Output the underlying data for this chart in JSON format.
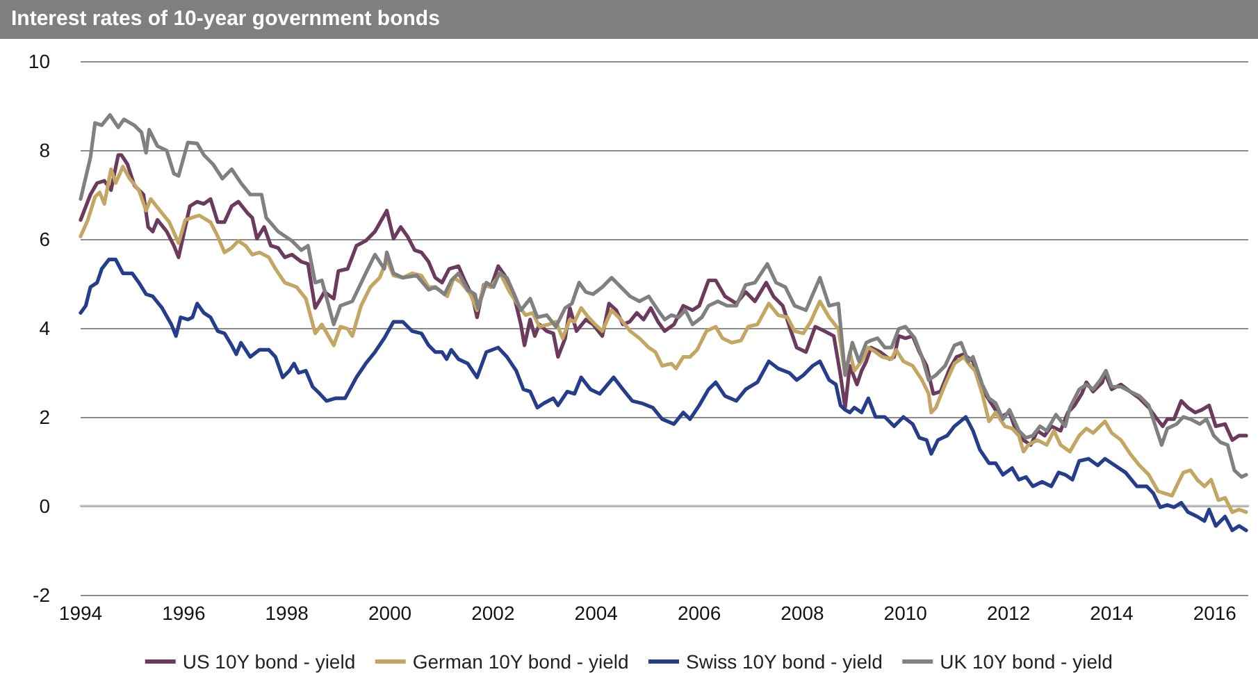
{
  "chart_data": {
    "type": "line",
    "title": "Interest rates of 10-year government bonds",
    "xlim": [
      1994,
      2016.65
    ],
    "xticks": [
      1994,
      1996,
      1998,
      2000,
      2002,
      2004,
      2006,
      2008,
      2010,
      2012,
      2014,
      2016
    ],
    "ylim": [
      -2,
      10
    ],
    "yticks": [
      -2,
      0,
      2,
      4,
      6,
      8,
      10
    ],
    "grid": "y",
    "legend": "bottom",
    "marker": "none",
    "line_style": "solid",
    "series": [
      {
        "name": "US 10Y bond - yield",
        "color": "#6b3a5c",
        "x": [
          1994.0,
          1994.19,
          1994.32,
          1994.46,
          1994.59,
          1994.73,
          1994.79,
          1994.91,
          1995.04,
          1995.22,
          1995.31,
          1995.4,
          1995.49,
          1995.67,
          1995.81,
          1995.9,
          1995.99,
          1996.12,
          1996.26,
          1996.39,
          1996.52,
          1996.66,
          1996.79,
          1996.93,
          1997.06,
          1997.24,
          1997.33,
          1997.42,
          1997.56,
          1997.69,
          1997.83,
          1997.96,
          1998.1,
          1998.28,
          1998.41,
          1998.55,
          1998.73,
          1998.91,
          1999.0,
          1999.18,
          1999.35,
          1999.53,
          1999.71,
          1999.94,
          2000.07,
          2000.21,
          2000.34,
          2000.48,
          2000.61,
          2000.75,
          2000.88,
          2001.01,
          2001.15,
          2001.33,
          2001.47,
          2001.6,
          2001.69,
          2001.82,
          2001.96,
          2002.1,
          2002.23,
          2002.41,
          2002.54,
          2002.61,
          2002.72,
          2002.81,
          2002.9,
          2003.04,
          2003.17,
          2003.26,
          2003.4,
          2003.49,
          2003.62,
          2003.8,
          2003.94,
          2004.12,
          2004.25,
          2004.39,
          2004.52,
          2004.65,
          2004.79,
          2004.92,
          2005.06,
          2005.2,
          2005.33,
          2005.51,
          2005.69,
          2005.87,
          2006.0,
          2006.18,
          2006.32,
          2006.5,
          2006.72,
          2006.9,
          2007.08,
          2007.3,
          2007.44,
          2007.62,
          2007.75,
          2007.89,
          2008.07,
          2008.25,
          2008.43,
          2008.61,
          2008.74,
          2008.83,
          2008.92,
          2009.06,
          2009.15,
          2009.24,
          2009.33,
          2009.51,
          2009.69,
          2009.78,
          2009.87,
          2010.0,
          2010.14,
          2010.27,
          2010.41,
          2010.54,
          2010.68,
          2010.86,
          2010.99,
          2011.13,
          2011.31,
          2011.49,
          2011.66,
          2011.84,
          2012.02,
          2012.16,
          2012.29,
          2012.43,
          2012.56,
          2012.7,
          2012.83,
          2013.01,
          2013.15,
          2013.28,
          2013.42,
          2013.51,
          2013.64,
          2013.82,
          2013.87,
          2014.0,
          2014.18,
          2014.36,
          2014.54,
          2014.72,
          2014.85,
          2014.99,
          2015.08,
          2015.21,
          2015.35,
          2015.48,
          2015.62,
          2015.75,
          2015.89,
          2016.02,
          2016.2,
          2016.34,
          2016.47,
          2016.61
        ],
        "values": [
          6.43,
          7.0,
          7.26,
          7.31,
          7.1,
          7.89,
          7.89,
          7.68,
          7.21,
          7.0,
          6.27,
          6.17,
          6.43,
          6.17,
          5.85,
          5.59,
          6.06,
          6.74,
          6.84,
          6.79,
          6.9,
          6.38,
          6.38,
          6.74,
          6.84,
          6.58,
          6.48,
          6.01,
          6.27,
          5.85,
          5.8,
          5.59,
          5.65,
          5.49,
          5.44,
          4.45,
          4.81,
          4.66,
          5.28,
          5.33,
          5.85,
          5.96,
          6.17,
          6.64,
          6.01,
          6.27,
          6.06,
          5.75,
          5.7,
          5.49,
          5.13,
          5.02,
          5.33,
          5.39,
          5.02,
          4.71,
          4.24,
          4.97,
          4.92,
          5.39,
          5.18,
          4.71,
          4.08,
          3.61,
          4.19,
          3.82,
          4.08,
          3.93,
          3.88,
          3.35,
          3.77,
          4.45,
          3.93,
          4.19,
          4.08,
          3.82,
          4.55,
          4.4,
          4.08,
          4.14,
          4.34,
          4.19,
          4.45,
          4.14,
          3.93,
          4.08,
          4.5,
          4.4,
          4.5,
          5.07,
          5.07,
          4.71,
          4.55,
          4.81,
          4.6,
          5.02,
          4.71,
          4.5,
          4.03,
          3.56,
          3.46,
          4.03,
          3.93,
          3.82,
          2.94,
          2.21,
          3.15,
          2.73,
          3.04,
          3.25,
          3.56,
          3.46,
          3.3,
          3.35,
          3.82,
          3.77,
          3.82,
          3.46,
          3.15,
          2.52,
          2.57,
          3.09,
          3.35,
          3.41,
          3.25,
          2.62,
          2.31,
          2.0,
          2.1,
          1.64,
          1.48,
          1.37,
          1.69,
          1.58,
          1.79,
          1.69,
          2.1,
          2.26,
          2.52,
          2.78,
          2.57,
          2.78,
          2.99,
          2.62,
          2.73,
          2.57,
          2.42,
          2.21,
          2.0,
          1.79,
          1.95,
          1.95,
          2.36,
          2.21,
          2.1,
          2.16,
          2.26,
          1.79,
          1.84,
          1.48,
          1.58,
          1.58
        ]
      },
      {
        "name": "German 10Y bond - yield",
        "color": "#c2a661",
        "x": [
          1994.0,
          1994.14,
          1994.28,
          1994.37,
          1994.46,
          1994.59,
          1994.68,
          1994.82,
          1994.95,
          1995.13,
          1995.27,
          1995.36,
          1995.54,
          1995.72,
          1995.9,
          1996.03,
          1996.21,
          1996.3,
          1996.52,
          1996.66,
          1996.79,
          1996.93,
          1997.06,
          1997.2,
          1997.33,
          1997.47,
          1997.65,
          1997.78,
          1997.96,
          1998.19,
          1998.37,
          1998.55,
          1998.68,
          1998.91,
          1999.04,
          1999.18,
          1999.27,
          1999.44,
          1999.62,
          1999.8,
          1999.94,
          2000.07,
          2000.25,
          2000.43,
          2000.61,
          2000.75,
          2000.88,
          2001.11,
          2001.24,
          2001.38,
          2001.56,
          2001.69,
          2001.83,
          2001.96,
          2002.14,
          2002.32,
          2002.5,
          2002.63,
          2002.77,
          2002.9,
          2003.08,
          2003.22,
          2003.35,
          2003.49,
          2003.58,
          2003.71,
          2003.85,
          2003.98,
          2004.12,
          2004.3,
          2004.48,
          2004.66,
          2004.84,
          2005.02,
          2005.15,
          2005.28,
          2005.46,
          2005.55,
          2005.69,
          2005.82,
          2005.96,
          2006.14,
          2006.32,
          2006.45,
          2006.63,
          2006.81,
          2006.95,
          2007.13,
          2007.35,
          2007.53,
          2007.71,
          2007.85,
          2008.02,
          2008.16,
          2008.34,
          2008.52,
          2008.7,
          2008.83,
          2008.92,
          2009.01,
          2009.15,
          2009.28,
          2009.42,
          2009.55,
          2009.73,
          2009.82,
          2009.96,
          2010.14,
          2010.32,
          2010.45,
          2010.5,
          2010.59,
          2010.77,
          2010.95,
          2011.13,
          2011.26,
          2011.35,
          2011.49,
          2011.62,
          2011.75,
          2011.93,
          2012.07,
          2012.2,
          2012.29,
          2012.38,
          2012.56,
          2012.74,
          2012.88,
          2013.01,
          2013.19,
          2013.37,
          2013.51,
          2013.64,
          2013.87,
          2014.0,
          2014.18,
          2014.36,
          2014.54,
          2014.72,
          2014.9,
          2015.03,
          2015.17,
          2015.3,
          2015.39,
          2015.53,
          2015.66,
          2015.8,
          2015.93,
          2016.07,
          2016.2,
          2016.34,
          2016.47,
          2016.61
        ],
        "values": [
          6.06,
          6.43,
          6.95,
          7.05,
          6.79,
          7.57,
          7.26,
          7.63,
          7.36,
          7.1,
          6.64,
          6.9,
          6.64,
          6.38,
          5.91,
          6.43,
          6.5,
          6.53,
          6.38,
          6.06,
          5.7,
          5.8,
          5.96,
          5.85,
          5.65,
          5.7,
          5.59,
          5.33,
          5.02,
          4.92,
          4.66,
          3.88,
          4.08,
          3.61,
          4.03,
          3.98,
          3.82,
          4.5,
          4.92,
          5.13,
          5.54,
          5.18,
          5.13,
          5.23,
          5.18,
          4.92,
          4.92,
          4.71,
          5.13,
          5.02,
          4.76,
          4.4,
          4.97,
          4.92,
          5.23,
          4.81,
          4.5,
          4.29,
          4.34,
          4.03,
          4.08,
          4.14,
          3.77,
          4.19,
          4.14,
          4.45,
          4.24,
          4.08,
          3.93,
          4.4,
          4.19,
          3.93,
          3.77,
          3.56,
          3.46,
          3.15,
          3.2,
          3.09,
          3.35,
          3.35,
          3.51,
          3.93,
          4.03,
          3.77,
          3.67,
          3.72,
          4.03,
          4.08,
          4.55,
          4.29,
          4.24,
          3.93,
          3.88,
          4.14,
          4.6,
          4.24,
          3.98,
          2.94,
          3.46,
          3.04,
          3.25,
          3.56,
          3.46,
          3.35,
          3.3,
          3.51,
          3.25,
          3.15,
          2.83,
          2.52,
          2.1,
          2.21,
          2.73,
          3.2,
          3.35,
          3.15,
          3.04,
          2.52,
          1.9,
          2.1,
          1.79,
          1.74,
          1.58,
          1.22,
          1.37,
          1.48,
          1.37,
          1.69,
          1.37,
          1.22,
          1.58,
          1.74,
          1.64,
          1.9,
          1.64,
          1.48,
          1.17,
          0.91,
          0.7,
          0.33,
          0.28,
          0.23,
          0.54,
          0.75,
          0.8,
          0.59,
          0.44,
          0.59,
          0.13,
          0.18,
          -0.14,
          -0.08,
          -0.14
        ]
      },
      {
        "name": "Swiss 10Y bond - yield",
        "color": "#263d8c",
        "x": [
          1994.0,
          1994.1,
          1994.19,
          1994.32,
          1994.41,
          1994.55,
          1994.68,
          1994.82,
          1995.0,
          1995.13,
          1995.27,
          1995.4,
          1995.58,
          1995.76,
          1995.85,
          1995.94,
          1996.08,
          1996.17,
          1996.26,
          1996.39,
          1996.52,
          1996.66,
          1996.79,
          1996.93,
          1997.02,
          1997.11,
          1997.29,
          1997.47,
          1997.65,
          1997.78,
          1997.92,
          1998.05,
          1998.14,
          1998.23,
          1998.37,
          1998.5,
          1998.64,
          1998.77,
          1998.95,
          1999.13,
          1999.35,
          1999.53,
          1999.71,
          1999.89,
          2000.07,
          2000.25,
          2000.43,
          2000.61,
          2000.75,
          2000.88,
          2001.01,
          2001.1,
          2001.19,
          2001.33,
          2001.51,
          2001.69,
          2001.87,
          2002.1,
          2002.27,
          2002.45,
          2002.59,
          2002.72,
          2002.86,
          2002.99,
          2003.17,
          2003.26,
          2003.44,
          2003.58,
          2003.71,
          2003.89,
          2004.07,
          2004.34,
          2004.52,
          2004.7,
          2004.88,
          2005.1,
          2005.28,
          2005.51,
          2005.69,
          2005.82,
          2006.0,
          2006.18,
          2006.32,
          2006.5,
          2006.72,
          2006.9,
          2007.13,
          2007.35,
          2007.53,
          2007.75,
          2007.89,
          2008.02,
          2008.2,
          2008.34,
          2008.52,
          2008.65,
          2008.74,
          2008.83,
          2008.92,
          2009.01,
          2009.15,
          2009.28,
          2009.42,
          2009.6,
          2009.78,
          2009.96,
          2010.14,
          2010.27,
          2010.41,
          2010.5,
          2010.63,
          2010.81,
          2010.95,
          2011.17,
          2011.31,
          2011.44,
          2011.62,
          2011.75,
          2011.89,
          2012.07,
          2012.2,
          2012.34,
          2012.47,
          2012.65,
          2012.83,
          2012.97,
          2013.1,
          2013.24,
          2013.37,
          2013.55,
          2013.73,
          2013.87,
          2014.0,
          2014.27,
          2014.49,
          2014.68,
          2014.81,
          2014.94,
          2015.08,
          2015.21,
          2015.35,
          2015.48,
          2015.66,
          2015.8,
          2015.89,
          2016.02,
          2016.2,
          2016.34,
          2016.47,
          2016.61
        ],
        "values": [
          4.34,
          4.5,
          4.92,
          5.02,
          5.33,
          5.54,
          5.54,
          5.23,
          5.23,
          5.02,
          4.76,
          4.71,
          4.45,
          4.08,
          3.82,
          4.24,
          4.19,
          4.24,
          4.55,
          4.34,
          4.24,
          3.93,
          3.88,
          3.61,
          3.41,
          3.67,
          3.35,
          3.51,
          3.51,
          3.35,
          2.89,
          3.04,
          3.2,
          2.99,
          3.04,
          2.68,
          2.52,
          2.36,
          2.42,
          2.42,
          2.89,
          3.2,
          3.46,
          3.77,
          4.14,
          4.14,
          3.93,
          3.88,
          3.61,
          3.46,
          3.46,
          3.3,
          3.51,
          3.3,
          3.2,
          2.89,
          3.46,
          3.56,
          3.35,
          3.04,
          2.62,
          2.57,
          2.21,
          2.31,
          2.42,
          2.26,
          2.57,
          2.52,
          2.89,
          2.62,
          2.52,
          2.89,
          2.62,
          2.36,
          2.31,
          2.21,
          1.95,
          1.84,
          2.1,
          1.95,
          2.26,
          2.62,
          2.78,
          2.47,
          2.36,
          2.62,
          2.78,
          3.25,
          3.09,
          2.99,
          2.83,
          2.94,
          3.15,
          3.25,
          2.83,
          2.73,
          2.26,
          2.16,
          2.1,
          2.21,
          2.1,
          2.42,
          2.0,
          2.0,
          1.79,
          2.0,
          1.84,
          1.53,
          1.48,
          1.17,
          1.48,
          1.58,
          1.79,
          2.0,
          1.69,
          1.27,
          0.96,
          0.96,
          0.7,
          0.85,
          0.59,
          0.65,
          0.44,
          0.54,
          0.44,
          0.75,
          0.7,
          0.59,
          1.01,
          1.06,
          0.91,
          1.06,
          0.96,
          0.75,
          0.44,
          0.44,
          0.28,
          -0.03,
          0.02,
          -0.03,
          0.07,
          -0.14,
          -0.24,
          -0.34,
          -0.08,
          -0.45,
          -0.24,
          -0.55,
          -0.45,
          -0.55
        ]
      },
      {
        "name": "UK 10Y bond - yield",
        "color": "#808080",
        "x": [
          1994.0,
          1994.19,
          1994.28,
          1994.41,
          1994.57,
          1994.73,
          1994.84,
          1995.04,
          1995.18,
          1995.27,
          1995.33,
          1995.49,
          1995.67,
          1995.81,
          1995.9,
          1996.08,
          1996.26,
          1996.39,
          1996.57,
          1996.75,
          1996.93,
          1997.11,
          1997.29,
          1997.51,
          1997.6,
          1997.83,
          1998.1,
          1998.28,
          1998.41,
          1998.55,
          1998.68,
          1998.91,
          1999.04,
          1999.27,
          1999.53,
          1999.71,
          1999.89,
          1999.94,
          2000.07,
          2000.25,
          2000.52,
          2000.75,
          2000.88,
          2001.06,
          2001.19,
          2001.33,
          2001.51,
          2001.65,
          2001.71,
          2001.87,
          2002.01,
          2002.12,
          2002.27,
          2002.41,
          2002.54,
          2002.72,
          2002.86,
          2003.04,
          2003.22,
          2003.4,
          2003.53,
          2003.67,
          2003.8,
          2003.94,
          2004.12,
          2004.3,
          2004.48,
          2004.66,
          2004.84,
          2005.02,
          2005.2,
          2005.33,
          2005.46,
          2005.6,
          2005.73,
          2005.87,
          2006.05,
          2006.18,
          2006.36,
          2006.54,
          2006.72,
          2006.9,
          2007.08,
          2007.32,
          2007.49,
          2007.67,
          2007.85,
          2008.07,
          2008.34,
          2008.52,
          2008.7,
          2008.83,
          2008.97,
          2009.1,
          2009.24,
          2009.33,
          2009.46,
          2009.6,
          2009.73,
          2009.87,
          2010.0,
          2010.18,
          2010.32,
          2010.45,
          2010.59,
          2010.77,
          2010.95,
          2011.08,
          2011.22,
          2011.31,
          2011.49,
          2011.62,
          2011.75,
          2011.89,
          2012.02,
          2012.2,
          2012.34,
          2012.47,
          2012.61,
          2012.74,
          2012.92,
          2013.1,
          2013.19,
          2013.37,
          2013.51,
          2013.64,
          2013.78,
          2013.89,
          2014.0,
          2014.18,
          2014.36,
          2014.54,
          2014.72,
          2014.85,
          2014.97,
          2015.08,
          2015.26,
          2015.39,
          2015.53,
          2015.71,
          2015.84,
          2015.98,
          2016.11,
          2016.25,
          2016.38,
          2016.52,
          2016.61
        ],
        "values": [
          6.9,
          7.83,
          8.61,
          8.56,
          8.79,
          8.51,
          8.69,
          8.56,
          8.4,
          7.94,
          8.46,
          8.09,
          7.99,
          7.47,
          7.42,
          8.17,
          8.15,
          7.89,
          7.68,
          7.36,
          7.57,
          7.26,
          7.0,
          7.0,
          6.48,
          6.17,
          5.96,
          5.75,
          5.85,
          5.02,
          5.07,
          4.08,
          4.5,
          4.6,
          5.23,
          5.65,
          5.33,
          5.7,
          5.23,
          5.13,
          5.18,
          4.86,
          4.92,
          4.76,
          5.07,
          5.23,
          4.86,
          4.76,
          4.45,
          5.02,
          4.92,
          5.23,
          5.13,
          4.76,
          4.4,
          4.66,
          4.24,
          4.29,
          4.03,
          4.45,
          4.55,
          5.02,
          4.81,
          4.76,
          4.92,
          5.13,
          4.92,
          4.71,
          4.6,
          4.71,
          4.4,
          4.19,
          4.29,
          4.24,
          4.4,
          4.08,
          4.24,
          4.5,
          4.6,
          4.5,
          4.5,
          4.97,
          5.02,
          5.44,
          5.02,
          4.92,
          4.5,
          4.4,
          5.13,
          4.5,
          4.55,
          2.94,
          3.67,
          3.25,
          3.67,
          3.72,
          3.77,
          3.56,
          3.56,
          3.98,
          4.03,
          3.77,
          3.35,
          2.83,
          2.94,
          3.15,
          3.61,
          3.67,
          3.25,
          3.35,
          2.73,
          2.42,
          2.31,
          1.95,
          2.16,
          1.69,
          1.53,
          1.58,
          1.79,
          1.69,
          2.05,
          1.79,
          2.21,
          2.62,
          2.73,
          2.62,
          2.83,
          3.04,
          2.68,
          2.68,
          2.57,
          2.47,
          2.26,
          1.79,
          1.37,
          1.74,
          1.84,
          2.0,
          1.95,
          1.84,
          1.95,
          1.58,
          1.43,
          1.37,
          0.8,
          0.65,
          0.7
        ]
      }
    ]
  }
}
